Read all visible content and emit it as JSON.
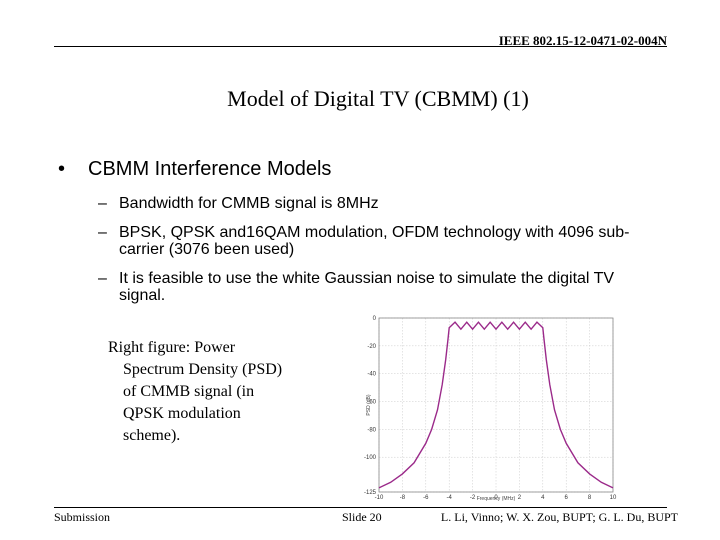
{
  "header": {
    "doc_id": "IEEE 802.15-12-0471-02-004N"
  },
  "title": "Model of Digital TV (CBMM) (1)",
  "bullet": "CBMM Interference Models",
  "subbullets": [
    "Bandwidth for CMMB signal is 8MHz",
    "BPSK, QPSK and16QAM modulation, OFDM technology with 4096 sub-carrier (3076 been used)",
    "It is feasible to use the white Gaussian noise to simulate the digital TV signal."
  ],
  "caption": {
    "line1": "Right figure: Power",
    "rest": "Spectrum Density (PSD) of CMMB signal (in QPSK modulation scheme)."
  },
  "chart_data": {
    "type": "line",
    "title": "",
    "xlabel": "Frequency (MHz)",
    "ylabel": "PSD (dB)",
    "xlim": [
      -10,
      10
    ],
    "ylim": [
      -125,
      0
    ],
    "xticks": [
      "-10",
      "-8",
      "-6",
      "-4",
      "-2",
      "0",
      "2",
      "4",
      "6",
      "8",
      "10"
    ],
    "yticks": [
      "0",
      "-20",
      "-40",
      "-60",
      "-80",
      "-100",
      "-125"
    ],
    "grid": true,
    "color": "#9b2a8a",
    "series": [
      {
        "x": [
          -10,
          -9,
          -8,
          -7,
          -6,
          -5.5,
          -5,
          -4.6,
          -4.3,
          -4.1,
          -4,
          -3.5,
          -3,
          -2.5,
          -2,
          -1.5,
          -1,
          -0.5,
          0,
          0.5,
          1,
          1.5,
          2,
          2.5,
          3,
          3.5,
          4,
          4.1,
          4.3,
          4.6,
          5,
          5.5,
          6,
          7,
          8,
          9,
          10
        ],
        "y": [
          -122,
          -118,
          -112,
          -104,
          -90,
          -80,
          -66,
          -48,
          -30,
          -15,
          -7,
          -3,
          -8,
          -3,
          -8,
          -3,
          -8,
          -3,
          -8,
          -3,
          -8,
          -3,
          -8,
          -3,
          -8,
          -3,
          -7,
          -15,
          -30,
          -48,
          -66,
          -80,
          -90,
          -104,
          -112,
          -118,
          -122
        ]
      }
    ]
  },
  "footer": {
    "left": "Submission",
    "center": "Slide 20",
    "right": "L. Li, Vinno; W. X. Zou, BUPT; G. L. Du, BUPT"
  }
}
